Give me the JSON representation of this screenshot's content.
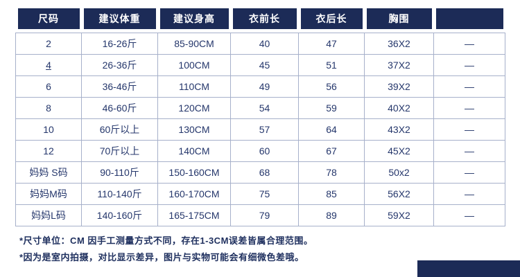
{
  "table": {
    "headers": [
      "尺码",
      "建议体重",
      "建议身高",
      "衣前长",
      "衣后长",
      "胸围",
      ""
    ],
    "rows": [
      [
        "2",
        "16-26斤",
        "85-90CM",
        "40",
        "47",
        "36X2",
        "—"
      ],
      [
        "4",
        "26-36斤",
        "100CM",
        "45",
        "51",
        "37X2",
        "—"
      ],
      [
        "6",
        "36-46斤",
        "110CM",
        "49",
        "56",
        "39X2",
        "—"
      ],
      [
        "8",
        "46-60斤",
        "120CM",
        "54",
        "59",
        "40X2",
        "—"
      ],
      [
        "10",
        "60斤以上",
        "130CM",
        "57",
        "64",
        "43X2",
        "—"
      ],
      [
        "12",
        "70斤以上",
        "140CM",
        "60",
        "67",
        "45X2",
        "—"
      ],
      [
        "妈妈 S码",
        "90-110斤",
        "150-160CM",
        "68",
        "78",
        "50x2",
        "—"
      ],
      [
        "妈妈M码",
        "110-140斤",
        "160-170CM",
        "75",
        "85",
        "56X2",
        "—"
      ],
      [
        "妈妈L码",
        "140-160斤",
        "165-175CM",
        "79",
        "89",
        "59X2",
        "—"
      ]
    ]
  },
  "notes": [
    "*尺寸单位：CM 因手工测量方式不同，存在1-3CM误差皆属合理范围。",
    "*因为是室内拍摄，对比显示差异，图片与实物可能会有细微色差哦。"
  ],
  "colors": {
    "header_bg": "#1c2b57",
    "header_text": "#ffffff",
    "body_text": "#24366b",
    "border": "#a6b0ca"
  }
}
